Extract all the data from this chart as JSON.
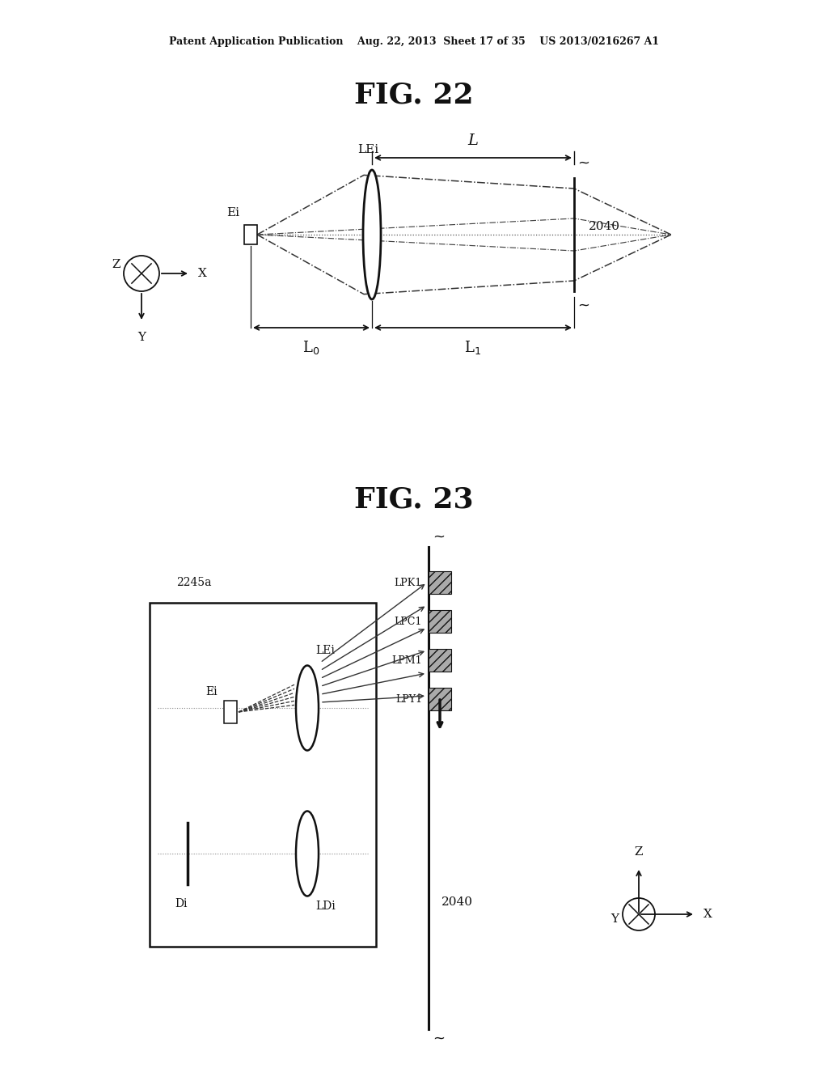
{
  "background_color": "#ffffff",
  "header_text": "Patent Application Publication    Aug. 22, 2013  Sheet 17 of 35    US 2013/0216267 A1",
  "fig22_title": "FIG. 22",
  "fig23_title": "FIG. 23"
}
